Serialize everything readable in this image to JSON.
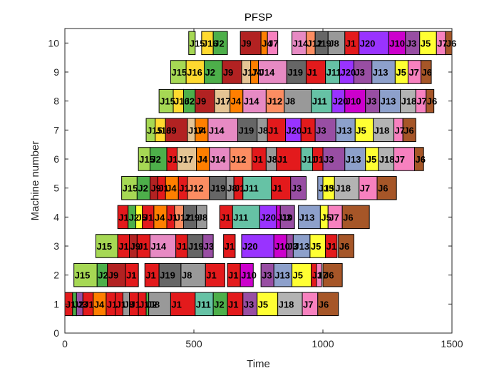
{
  "chart_data": {
    "type": "gantt",
    "title": "PFSP",
    "xlabel": "Time",
    "ylabel": "Machine number",
    "xlim": [
      0,
      1500
    ],
    "ylim": [
      0,
      10.5
    ],
    "xticks": [
      0,
      500,
      1000,
      1500
    ],
    "yticks": [
      0,
      1,
      2,
      3,
      4,
      5,
      6,
      7,
      8,
      9,
      10
    ],
    "grid": false,
    "job_colors": {
      "J1": "#e31a1c",
      "J2": "#4daf4a",
      "J3": "#984ea3",
      "J4": "#ff7f00",
      "J5": "#ffff33",
      "J6": "#a65628",
      "J7": "#f781bf",
      "J8": "#999999",
      "J9": "#b22222",
      "J10": "#cc00cc",
      "J11": "#66c2a5",
      "J12": "#fc8d62",
      "J13": "#8da0cb",
      "J14": "#e78ac3",
      "J15": "#a6d854",
      "J16": "#ffd92f",
      "J17": "#e5c494",
      "J18": "#b3b3b3",
      "J19": "#666666",
      "J20": "#9933ff"
    },
    "operations": [
      {
        "machine": 1,
        "job": "J1",
        "start": 0,
        "end": 30
      },
      {
        "machine": 1,
        "job": "J2",
        "start": 30,
        "end": 45
      },
      {
        "machine": 1,
        "job": "J3",
        "start": 45,
        "end": 70
      },
      {
        "machine": 1,
        "job": "J1",
        "start": 70,
        "end": 110
      },
      {
        "machine": 1,
        "job": "J4",
        "start": 110,
        "end": 160
      },
      {
        "machine": 1,
        "job": "J1",
        "start": 160,
        "end": 195
      },
      {
        "machine": 1,
        "job": "J1",
        "start": 195,
        "end": 225
      },
      {
        "machine": 1,
        "job": "J8",
        "start": 225,
        "end": 250
      },
      {
        "machine": 1,
        "job": "J1",
        "start": 250,
        "end": 285
      },
      {
        "machine": 1,
        "job": "J1",
        "start": 285,
        "end": 315
      },
      {
        "machine": 1,
        "job": "J2",
        "start": 315,
        "end": 325
      },
      {
        "machine": 1,
        "job": "J8",
        "start": 325,
        "end": 410
      },
      {
        "machine": 1,
        "job": "J1",
        "start": 410,
        "end": 505
      },
      {
        "machine": 1,
        "job": "J11",
        "start": 505,
        "end": 575
      },
      {
        "machine": 1,
        "job": "J2",
        "start": 575,
        "end": 630
      },
      {
        "machine": 1,
        "job": "J1",
        "start": 630,
        "end": 690
      },
      {
        "machine": 1,
        "job": "J3",
        "start": 690,
        "end": 745
      },
      {
        "machine": 1,
        "job": "J5",
        "start": 745,
        "end": 825
      },
      {
        "machine": 1,
        "job": "J18",
        "start": 825,
        "end": 920
      },
      {
        "machine": 1,
        "job": "J7",
        "start": 920,
        "end": 980
      },
      {
        "machine": 1,
        "job": "J6",
        "start": 980,
        "end": 1060
      },
      {
        "machine": 2,
        "job": "J15",
        "start": 35,
        "end": 125
      },
      {
        "machine": 2,
        "job": "J2",
        "start": 125,
        "end": 165
      },
      {
        "machine": 2,
        "job": "J9",
        "start": 165,
        "end": 235
      },
      {
        "machine": 2,
        "job": "J1",
        "start": 235,
        "end": 285
      },
      {
        "machine": 2,
        "job": "J1",
        "start": 310,
        "end": 365
      },
      {
        "machine": 2,
        "job": "J19",
        "start": 365,
        "end": 450
      },
      {
        "machine": 2,
        "job": "J8",
        "start": 450,
        "end": 545
      },
      {
        "machine": 2,
        "job": "J1",
        "start": 545,
        "end": 620
      },
      {
        "machine": 2,
        "job": "J1",
        "start": 630,
        "end": 680
      },
      {
        "machine": 2,
        "job": "J10",
        "start": 680,
        "end": 730
      },
      {
        "machine": 2,
        "job": "J3",
        "start": 760,
        "end": 810
      },
      {
        "machine": 2,
        "job": "J13",
        "start": 810,
        "end": 880
      },
      {
        "machine": 2,
        "job": "J5",
        "start": 880,
        "end": 955
      },
      {
        "machine": 2,
        "job": "J1",
        "start": 955,
        "end": 975
      },
      {
        "machine": 2,
        "job": "J7",
        "start": 975,
        "end": 995
      },
      {
        "machine": 2,
        "job": "J6",
        "start": 1000,
        "end": 1075
      },
      {
        "machine": 3,
        "job": "J15",
        "start": 120,
        "end": 205
      },
      {
        "machine": 3,
        "job": "J1",
        "start": 205,
        "end": 250
      },
      {
        "machine": 3,
        "job": "J9",
        "start": 250,
        "end": 280
      },
      {
        "machine": 3,
        "job": "J1",
        "start": 280,
        "end": 330
      },
      {
        "machine": 3,
        "job": "J14",
        "start": 330,
        "end": 430
      },
      {
        "machine": 3,
        "job": "J1",
        "start": 430,
        "end": 475
      },
      {
        "machine": 3,
        "job": "J19",
        "start": 475,
        "end": 535
      },
      {
        "machine": 3,
        "job": "J3",
        "start": 535,
        "end": 575
      },
      {
        "machine": 3,
        "job": "J1",
        "start": 615,
        "end": 660
      },
      {
        "machine": 3,
        "job": "J20",
        "start": 685,
        "end": 810
      },
      {
        "machine": 3,
        "job": "J10",
        "start": 810,
        "end": 860
      },
      {
        "machine": 3,
        "job": "J3",
        "start": 860,
        "end": 885
      },
      {
        "machine": 3,
        "job": "J13",
        "start": 885,
        "end": 950
      },
      {
        "machine": 3,
        "job": "J5",
        "start": 950,
        "end": 1010
      },
      {
        "machine": 3,
        "job": "J1",
        "start": 1010,
        "end": 1055
      },
      {
        "machine": 3,
        "job": "J6",
        "start": 1060,
        "end": 1120
      },
      {
        "machine": 4,
        "job": "J1",
        "start": 205,
        "end": 245
      },
      {
        "machine": 4,
        "job": "J2",
        "start": 245,
        "end": 275
      },
      {
        "machine": 4,
        "job": "J5",
        "start": 275,
        "end": 300
      },
      {
        "machine": 4,
        "job": "J1",
        "start": 300,
        "end": 345
      },
      {
        "machine": 4,
        "job": "J4",
        "start": 345,
        "end": 395
      },
      {
        "machine": 4,
        "job": "J1",
        "start": 395,
        "end": 425
      },
      {
        "machine": 4,
        "job": "J12",
        "start": 425,
        "end": 460
      },
      {
        "machine": 4,
        "job": "J19",
        "start": 460,
        "end": 510
      },
      {
        "machine": 4,
        "job": "J8",
        "start": 510,
        "end": 550
      },
      {
        "machine": 4,
        "job": "J1",
        "start": 600,
        "end": 650
      },
      {
        "machine": 4,
        "job": "J11",
        "start": 650,
        "end": 755
      },
      {
        "machine": 4,
        "job": "J20",
        "start": 755,
        "end": 820
      },
      {
        "machine": 4,
        "job": "J10",
        "start": 820,
        "end": 835
      },
      {
        "machine": 4,
        "job": "J3",
        "start": 835,
        "end": 890
      },
      {
        "machine": 4,
        "job": "J13",
        "start": 905,
        "end": 990
      },
      {
        "machine": 4,
        "job": "J5",
        "start": 990,
        "end": 1020
      },
      {
        "machine": 4,
        "job": "J7",
        "start": 1020,
        "end": 1075
      },
      {
        "machine": 4,
        "job": "J6",
        "start": 1075,
        "end": 1180
      },
      {
        "machine": 5,
        "job": "J15",
        "start": 220,
        "end": 280
      },
      {
        "machine": 5,
        "job": "J2",
        "start": 280,
        "end": 330
      },
      {
        "machine": 5,
        "job": "J9",
        "start": 330,
        "end": 360
      },
      {
        "machine": 5,
        "job": "J1",
        "start": 360,
        "end": 390
      },
      {
        "machine": 5,
        "job": "J4",
        "start": 390,
        "end": 440
      },
      {
        "machine": 5,
        "job": "J1",
        "start": 440,
        "end": 475
      },
      {
        "machine": 5,
        "job": "J12",
        "start": 475,
        "end": 560
      },
      {
        "machine": 5,
        "job": "J19",
        "start": 560,
        "end": 625
      },
      {
        "machine": 5,
        "job": "J8",
        "start": 625,
        "end": 655
      },
      {
        "machine": 5,
        "job": "J1",
        "start": 655,
        "end": 690
      },
      {
        "machine": 5,
        "job": "J11",
        "start": 690,
        "end": 800
      },
      {
        "machine": 5,
        "job": "J1",
        "start": 800,
        "end": 875
      },
      {
        "machine": 5,
        "job": "J3",
        "start": 875,
        "end": 935
      },
      {
        "machine": 5,
        "job": "J13",
        "start": 980,
        "end": 1000
      },
      {
        "machine": 5,
        "job": "J5",
        "start": 1000,
        "end": 1045
      },
      {
        "machine": 5,
        "job": "J18",
        "start": 1045,
        "end": 1140
      },
      {
        "machine": 5,
        "job": "J7",
        "start": 1140,
        "end": 1210
      },
      {
        "machine": 5,
        "job": "J6",
        "start": 1210,
        "end": 1285
      },
      {
        "machine": 6,
        "job": "J15",
        "start": 285,
        "end": 330
      },
      {
        "machine": 6,
        "job": "J2",
        "start": 330,
        "end": 395
      },
      {
        "machine": 6,
        "job": "J1",
        "start": 395,
        "end": 435
      },
      {
        "machine": 6,
        "job": "J17",
        "start": 435,
        "end": 510
      },
      {
        "machine": 6,
        "job": "J4",
        "start": 510,
        "end": 560
      },
      {
        "machine": 6,
        "job": "J14",
        "start": 560,
        "end": 640
      },
      {
        "machine": 6,
        "job": "J12",
        "start": 640,
        "end": 725
      },
      {
        "machine": 6,
        "job": "J1",
        "start": 725,
        "end": 780
      },
      {
        "machine": 6,
        "job": "J8",
        "start": 780,
        "end": 820
      },
      {
        "machine": 6,
        "job": "J1",
        "start": 820,
        "end": 915
      },
      {
        "machine": 6,
        "job": "J11",
        "start": 915,
        "end": 960
      },
      {
        "machine": 6,
        "job": "J1",
        "start": 960,
        "end": 1000
      },
      {
        "machine": 6,
        "job": "J3",
        "start": 1000,
        "end": 1085
      },
      {
        "machine": 6,
        "job": "J13",
        "start": 1085,
        "end": 1165
      },
      {
        "machine": 6,
        "job": "J5",
        "start": 1165,
        "end": 1215
      },
      {
        "machine": 6,
        "job": "J18",
        "start": 1215,
        "end": 1275
      },
      {
        "machine": 6,
        "job": "J7",
        "start": 1275,
        "end": 1355
      },
      {
        "machine": 6,
        "job": "J6",
        "start": 1355,
        "end": 1390
      },
      {
        "machine": 7,
        "job": "J15",
        "start": 315,
        "end": 350
      },
      {
        "machine": 7,
        "job": "J16",
        "start": 350,
        "end": 390
      },
      {
        "machine": 7,
        "job": "J9",
        "start": 390,
        "end": 475
      },
      {
        "machine": 7,
        "job": "J17",
        "start": 475,
        "end": 505
      },
      {
        "machine": 7,
        "job": "J4",
        "start": 505,
        "end": 555
      },
      {
        "machine": 7,
        "job": "J14",
        "start": 555,
        "end": 670
      },
      {
        "machine": 7,
        "job": "J19",
        "start": 670,
        "end": 745
      },
      {
        "machine": 7,
        "job": "J8",
        "start": 745,
        "end": 785
      },
      {
        "machine": 7,
        "job": "J1",
        "start": 785,
        "end": 855
      },
      {
        "machine": 7,
        "job": "J20",
        "start": 855,
        "end": 915
      },
      {
        "machine": 7,
        "job": "J1",
        "start": 915,
        "end": 970
      },
      {
        "machine": 7,
        "job": "J3",
        "start": 970,
        "end": 1050
      },
      {
        "machine": 7,
        "job": "J13",
        "start": 1050,
        "end": 1125
      },
      {
        "machine": 7,
        "job": "J5",
        "start": 1125,
        "end": 1195
      },
      {
        "machine": 7,
        "job": "J18",
        "start": 1195,
        "end": 1275
      },
      {
        "machine": 7,
        "job": "J7",
        "start": 1275,
        "end": 1310
      },
      {
        "machine": 7,
        "job": "J6",
        "start": 1310,
        "end": 1360
      },
      {
        "machine": 8,
        "job": "J15",
        "start": 365,
        "end": 420
      },
      {
        "machine": 8,
        "job": "J16",
        "start": 420,
        "end": 460
      },
      {
        "machine": 8,
        "job": "J2",
        "start": 460,
        "end": 505
      },
      {
        "machine": 8,
        "job": "J9",
        "start": 505,
        "end": 580
      },
      {
        "machine": 8,
        "job": "J17",
        "start": 580,
        "end": 640
      },
      {
        "machine": 8,
        "job": "J4",
        "start": 640,
        "end": 690
      },
      {
        "machine": 8,
        "job": "J14",
        "start": 690,
        "end": 780
      },
      {
        "machine": 8,
        "job": "J12",
        "start": 780,
        "end": 850
      },
      {
        "machine": 8,
        "job": "J8",
        "start": 850,
        "end": 955
      },
      {
        "machine": 8,
        "job": "J11",
        "start": 955,
        "end": 1035
      },
      {
        "machine": 8,
        "job": "J20",
        "start": 1035,
        "end": 1085
      },
      {
        "machine": 8,
        "job": "J10",
        "start": 1085,
        "end": 1165
      },
      {
        "machine": 8,
        "job": "J3",
        "start": 1165,
        "end": 1220
      },
      {
        "machine": 8,
        "job": "J13",
        "start": 1220,
        "end": 1300
      },
      {
        "machine": 8,
        "job": "J18",
        "start": 1300,
        "end": 1360
      },
      {
        "machine": 8,
        "job": "J7",
        "start": 1360,
        "end": 1400
      },
      {
        "machine": 8,
        "job": "J6",
        "start": 1400,
        "end": 1430
      },
      {
        "machine": 9,
        "job": "J15",
        "start": 410,
        "end": 470
      },
      {
        "machine": 9,
        "job": "J16",
        "start": 470,
        "end": 540
      },
      {
        "machine": 9,
        "job": "J2",
        "start": 540,
        "end": 610
      },
      {
        "machine": 9,
        "job": "J9",
        "start": 610,
        "end": 685
      },
      {
        "machine": 9,
        "job": "J17",
        "start": 685,
        "end": 720
      },
      {
        "machine": 9,
        "job": "J4",
        "start": 720,
        "end": 750
      },
      {
        "machine": 9,
        "job": "J14",
        "start": 750,
        "end": 860
      },
      {
        "machine": 9,
        "job": "J19",
        "start": 860,
        "end": 935
      },
      {
        "machine": 9,
        "job": "J1",
        "start": 935,
        "end": 1010
      },
      {
        "machine": 9,
        "job": "J11",
        "start": 1010,
        "end": 1065
      },
      {
        "machine": 9,
        "job": "J20",
        "start": 1065,
        "end": 1120
      },
      {
        "machine": 9,
        "job": "J3",
        "start": 1120,
        "end": 1190
      },
      {
        "machine": 9,
        "job": "J13",
        "start": 1190,
        "end": 1280
      },
      {
        "machine": 9,
        "job": "J5",
        "start": 1280,
        "end": 1330
      },
      {
        "machine": 9,
        "job": "J7",
        "start": 1330,
        "end": 1380
      },
      {
        "machine": 9,
        "job": "J6",
        "start": 1380,
        "end": 1420
      },
      {
        "machine": 10,
        "job": "J15",
        "start": 480,
        "end": 505
      },
      {
        "machine": 10,
        "job": "J16",
        "start": 530,
        "end": 575
      },
      {
        "machine": 10,
        "job": "J2",
        "start": 575,
        "end": 630
      },
      {
        "machine": 10,
        "job": "J9",
        "start": 680,
        "end": 760
      },
      {
        "machine": 10,
        "job": "J4",
        "start": 760,
        "end": 785
      },
      {
        "machine": 10,
        "job": "J7",
        "start": 785,
        "end": 825
      },
      {
        "machine": 10,
        "job": "J14",
        "start": 880,
        "end": 935
      },
      {
        "machine": 10,
        "job": "J12",
        "start": 935,
        "end": 970
      },
      {
        "machine": 10,
        "job": "J19",
        "start": 970,
        "end": 1020
      },
      {
        "machine": 10,
        "job": "J8",
        "start": 1020,
        "end": 1085
      },
      {
        "machine": 10,
        "job": "J1",
        "start": 1085,
        "end": 1140
      },
      {
        "machine": 10,
        "job": "J20",
        "start": 1140,
        "end": 1255
      },
      {
        "machine": 10,
        "job": "J10",
        "start": 1255,
        "end": 1320
      },
      {
        "machine": 10,
        "job": "J3",
        "start": 1320,
        "end": 1375
      },
      {
        "machine": 10,
        "job": "J5",
        "start": 1375,
        "end": 1440
      },
      {
        "machine": 10,
        "job": "J7",
        "start": 1440,
        "end": 1475
      },
      {
        "machine": 10,
        "job": "J6",
        "start": 1475,
        "end": 1500
      }
    ]
  }
}
